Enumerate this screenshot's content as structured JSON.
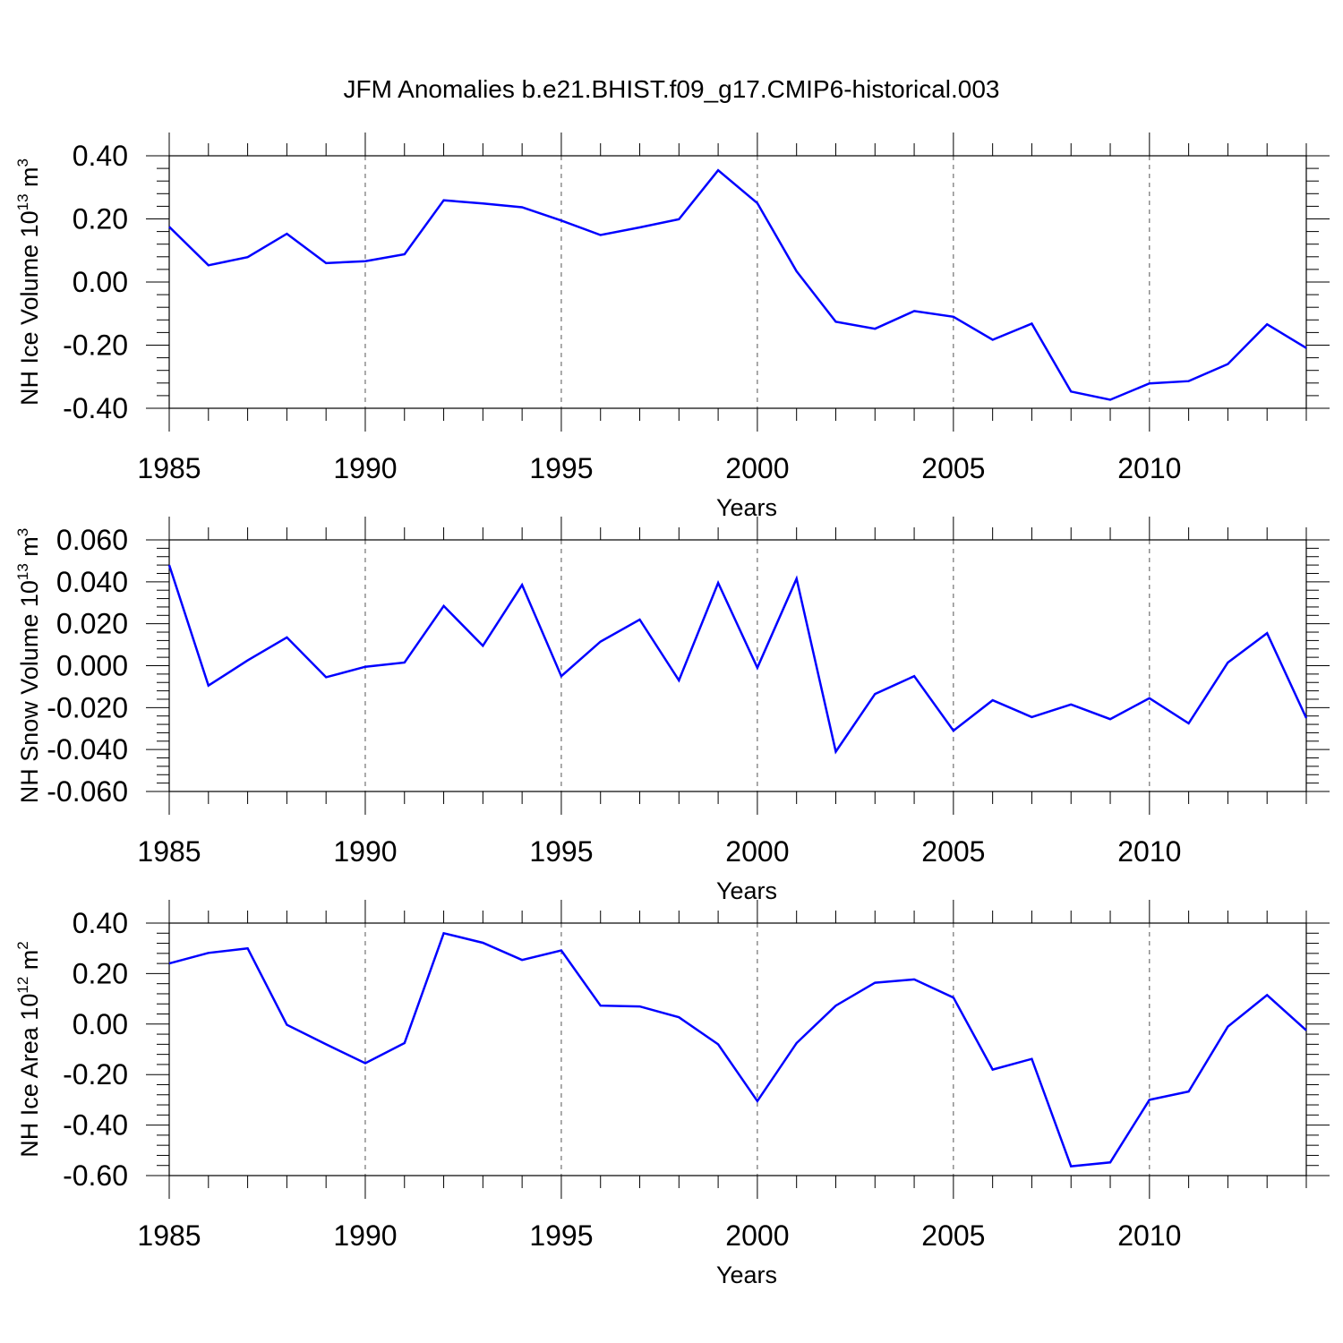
{
  "title": "JFM Anomalies b.e21.BHIST.f09_g17.CMIP6-historical.003",
  "line_color": "#0000ff",
  "chart_data": [
    {
      "type": "line",
      "name": "ice-volume",
      "ylabel": "NH Ice Volume",
      "ylabel_unit_base": "10",
      "ylabel_unit_exp": "13",
      "ylabel_unit_suffix": "m",
      "ylabel_unit_suffix_exp": "3",
      "xlabel": "Years",
      "xlim": [
        1985,
        2014
      ],
      "ylim": [
        -0.4,
        0.4
      ],
      "x_ticks": [
        "1985",
        "1990",
        "1995",
        "2000",
        "2005",
        "2010"
      ],
      "y_ticks": [
        "0.40",
        "0.20",
        "0.00",
        "-0.20",
        "-0.40"
      ],
      "x": [
        1985,
        1986,
        1987,
        1988,
        1989,
        1990,
        1991,
        1992,
        1993,
        1994,
        1995,
        1996,
        1997,
        1998,
        1999,
        2000,
        2001,
        2002,
        2003,
        2004,
        2005,
        2006,
        2007,
        2008,
        2009,
        2010,
        2011,
        2012,
        2013,
        2014
      ],
      "values": [
        0.175,
        0.053,
        0.079,
        0.153,
        0.06,
        0.066,
        0.088,
        0.259,
        0.249,
        0.237,
        0.195,
        0.149,
        0.173,
        0.199,
        0.354,
        0.25,
        0.034,
        -0.126,
        -0.148,
        -0.092,
        -0.11,
        -0.183,
        -0.132,
        -0.347,
        -0.373,
        -0.321,
        -0.314,
        -0.26,
        -0.134,
        -0.209
      ]
    },
    {
      "type": "line",
      "name": "snow-volume",
      "ylabel": "NH Snow Volume",
      "ylabel_unit_base": "10",
      "ylabel_unit_exp": "13",
      "ylabel_unit_suffix": "m",
      "ylabel_unit_suffix_exp": "3",
      "xlabel": "Years",
      "xlim": [
        1985,
        2014
      ],
      "ylim": [
        -0.06,
        0.06
      ],
      "x_ticks": [
        "1985",
        "1990",
        "1995",
        "2000",
        "2005",
        "2010"
      ],
      "y_ticks": [
        "0.060",
        "0.040",
        "0.020",
        "0.000",
        "-0.020",
        "-0.040",
        "-0.060"
      ],
      "x": [
        1985,
        1986,
        1987,
        1988,
        1989,
        1990,
        1991,
        1992,
        1993,
        1994,
        1995,
        1996,
        1997,
        1998,
        1999,
        2000,
        2001,
        2002,
        2003,
        2004,
        2005,
        2006,
        2007,
        2008,
        2009,
        2010,
        2011,
        2012,
        2013,
        2014
      ],
      "values": [
        0.048,
        -0.0095,
        0.0025,
        0.0135,
        -0.0055,
        -0.0005,
        0.0015,
        0.0285,
        0.0095,
        0.0385,
        -0.005,
        0.0115,
        0.022,
        -0.007,
        0.0395,
        -0.001,
        0.0415,
        -0.041,
        -0.0135,
        -0.005,
        -0.031,
        -0.0165,
        -0.0245,
        -0.0185,
        -0.0255,
        -0.0155,
        -0.0275,
        0.0015,
        0.0155,
        -0.025
      ]
    },
    {
      "type": "line",
      "name": "ice-area",
      "ylabel": "NH Ice Area",
      "ylabel_unit_base": "10",
      "ylabel_unit_exp": "12",
      "ylabel_unit_suffix": "m",
      "ylabel_unit_suffix_exp": "2",
      "xlabel": "Years",
      "xlim": [
        1985,
        2014
      ],
      "ylim": [
        -0.6,
        0.4
      ],
      "x_ticks": [
        "1985",
        "1990",
        "1995",
        "2000",
        "2005",
        "2010"
      ],
      "y_ticks": [
        "0.40",
        "0.20",
        "0.00",
        "-0.20",
        "-0.40",
        "-0.60"
      ],
      "x": [
        1985,
        1986,
        1987,
        1988,
        1989,
        1990,
        1991,
        1992,
        1993,
        1994,
        1995,
        1996,
        1997,
        1998,
        1999,
        2000,
        2001,
        2002,
        2003,
        2004,
        2005,
        2006,
        2007,
        2008,
        2009,
        2010,
        2011,
        2012,
        2013,
        2014
      ],
      "values": [
        0.24,
        0.282,
        0.3,
        -0.003,
        -0.08,
        -0.155,
        -0.075,
        0.36,
        0.322,
        0.254,
        0.292,
        0.073,
        0.07,
        0.027,
        -0.08,
        -0.305,
        -0.075,
        0.073,
        0.164,
        0.177,
        0.105,
        -0.18,
        -0.138,
        -0.563,
        -0.548,
        -0.3,
        -0.267,
        -0.01,
        0.115,
        -0.025
      ]
    }
  ]
}
